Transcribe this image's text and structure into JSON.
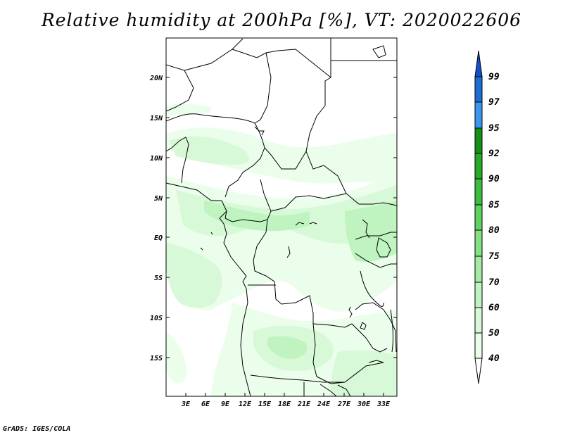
{
  "title": "Relative humidity at 200hPa [%], VT: 2020022606",
  "credit": "GrADS: IGES/COLA",
  "map": {
    "lat_labels": [
      "20N",
      "15N",
      "10N",
      "5N",
      "EQ",
      "5S",
      "10S",
      "15S"
    ],
    "lon_labels": [
      "3E",
      "6E",
      "9E",
      "12E",
      "15E",
      "18E",
      "21E",
      "24E",
      "27E",
      "30E",
      "33E"
    ]
  },
  "colorbar": {
    "levels": [
      "40",
      "50",
      "60",
      "70",
      "75",
      "80",
      "85",
      "90",
      "92",
      "95",
      "97",
      "99"
    ],
    "colors": [
      "#ffffff",
      "#ebfeeb",
      "#d8f9d8",
      "#bff3bf",
      "#a4eca4",
      "#84e184",
      "#5fd35f",
      "#3cbe3c",
      "#28a928",
      "#168f16",
      "#3c96ee",
      "#1e6ed2",
      "#1450c8"
    ]
  }
}
